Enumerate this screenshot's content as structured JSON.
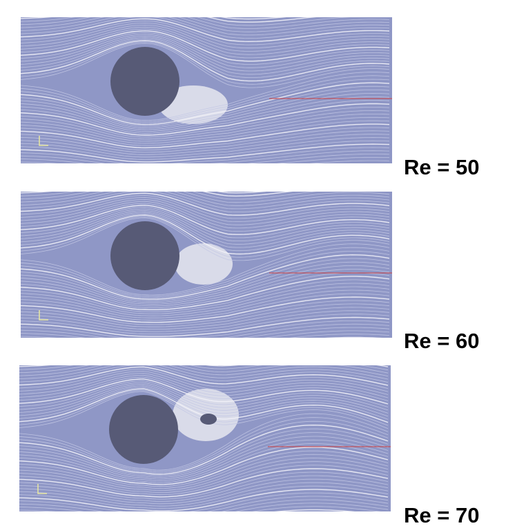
{
  "panels": [
    {
      "label": "Re = 50"
    },
    {
      "label": "Re = 60"
    },
    {
      "label": "Re = 70"
    }
  ]
}
